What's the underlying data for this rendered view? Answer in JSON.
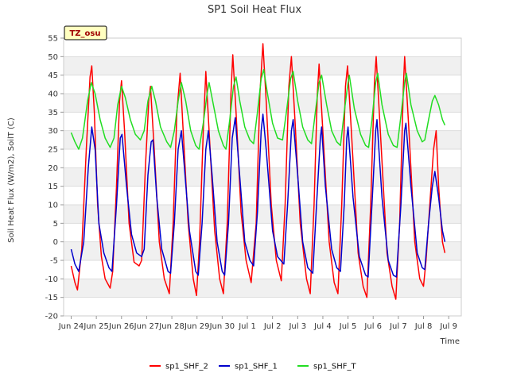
{
  "chart_data": {
    "type": "line",
    "title": "SP1 Soil Heat Flux",
    "xlabel": "Time",
    "ylabel": "Soil Heat Flux (W/m2), SoilT (C)",
    "badge": "TZ_osu",
    "ylim": [
      -20,
      55
    ],
    "xlim": [
      -0.3,
      15.5
    ],
    "y_ticks": [
      -20,
      -15,
      -10,
      -5,
      0,
      5,
      10,
      15,
      20,
      25,
      30,
      35,
      40,
      45,
      50,
      55
    ],
    "x_ticks": [
      {
        "pos": 0,
        "label": "Jun 24"
      },
      {
        "pos": 1,
        "label": "Jun 25"
      },
      {
        "pos": 2,
        "label": "Jun 26"
      },
      {
        "pos": 3,
        "label": "Jun 27"
      },
      {
        "pos": 4,
        "label": "Jun 28"
      },
      {
        "pos": 5,
        "label": "Jun 29"
      },
      {
        "pos": 6,
        "label": "Jun 30"
      },
      {
        "pos": 7,
        "label": "Jul 1"
      },
      {
        "pos": 8,
        "label": "Jul 2"
      },
      {
        "pos": 9,
        "label": "Jul 3"
      },
      {
        "pos": 10,
        "label": "Jul 4"
      },
      {
        "pos": 11,
        "label": "Jul 5"
      },
      {
        "pos": 12,
        "label": "Jul 6"
      },
      {
        "pos": 13,
        "label": "Jul 7"
      },
      {
        "pos": 14,
        "label": "Jul 8"
      },
      {
        "pos": 15,
        "label": "Jul 9"
      }
    ],
    "grid": "horizontal bands",
    "legend_position": "bottom",
    "series": [
      {
        "name": "sp1_SHF_2",
        "color": "#ff0000",
        "points": [
          [
            0.0,
            -6.5
          ],
          [
            0.15,
            -11.0
          ],
          [
            0.25,
            -13.0
          ],
          [
            0.42,
            -2.0
          ],
          [
            0.6,
            25.0
          ],
          [
            0.75,
            44.5
          ],
          [
            0.82,
            47.5
          ],
          [
            0.92,
            35.0
          ],
          [
            1.05,
            10.0
          ],
          [
            1.2,
            -4.0
          ],
          [
            1.35,
            -10.0
          ],
          [
            1.55,
            -12.5
          ],
          [
            1.65,
            -8.0
          ],
          [
            1.8,
            15.0
          ],
          [
            1.92,
            38.0
          ],
          [
            2.0,
            43.5
          ],
          [
            2.12,
            30.0
          ],
          [
            2.3,
            5.0
          ],
          [
            2.5,
            -5.5
          ],
          [
            2.7,
            -6.5
          ],
          [
            2.8,
            -5.0
          ],
          [
            2.95,
            20.0
          ],
          [
            3.08,
            38.0
          ],
          [
            3.15,
            42.0
          ],
          [
            3.3,
            25.0
          ],
          [
            3.5,
            0.0
          ],
          [
            3.7,
            -10.0
          ],
          [
            3.9,
            -14.0
          ],
          [
            4.05,
            5.0
          ],
          [
            4.2,
            35.0
          ],
          [
            4.33,
            45.5
          ],
          [
            4.45,
            30.0
          ],
          [
            4.65,
            5.0
          ],
          [
            4.85,
            -10.0
          ],
          [
            4.98,
            -14.5
          ],
          [
            5.1,
            0.0
          ],
          [
            5.25,
            30.0
          ],
          [
            5.35,
            46.0
          ],
          [
            5.48,
            30.0
          ],
          [
            5.7,
            3.0
          ],
          [
            5.9,
            -10.0
          ],
          [
            6.05,
            -14.0
          ],
          [
            6.2,
            5.0
          ],
          [
            6.35,
            40.0
          ],
          [
            6.42,
            50.5
          ],
          [
            6.55,
            35.0
          ],
          [
            6.75,
            8.0
          ],
          [
            6.95,
            -5.0
          ],
          [
            7.15,
            -11.0
          ],
          [
            7.35,
            5.0
          ],
          [
            7.5,
            40.0
          ],
          [
            7.62,
            53.5
          ],
          [
            7.75,
            38.0
          ],
          [
            7.95,
            10.0
          ],
          [
            8.15,
            -5.0
          ],
          [
            8.35,
            -10.5
          ],
          [
            8.5,
            10.0
          ],
          [
            8.65,
            42.0
          ],
          [
            8.75,
            50.0
          ],
          [
            8.9,
            32.0
          ],
          [
            9.1,
            5.0
          ],
          [
            9.35,
            -10.0
          ],
          [
            9.5,
            -14.0
          ],
          [
            9.65,
            10.0
          ],
          [
            9.78,
            40.0
          ],
          [
            9.85,
            48.0
          ],
          [
            10.0,
            30.0
          ],
          [
            10.25,
            0.0
          ],
          [
            10.45,
            -11.0
          ],
          [
            10.6,
            -14.0
          ],
          [
            10.75,
            10.0
          ],
          [
            10.9,
            42.0
          ],
          [
            10.98,
            47.5
          ],
          [
            11.15,
            28.0
          ],
          [
            11.4,
            -3.0
          ],
          [
            11.6,
            -12.0
          ],
          [
            11.75,
            -15.0
          ],
          [
            11.9,
            10.0
          ],
          [
            12.05,
            43.0
          ],
          [
            12.12,
            50.0
          ],
          [
            12.3,
            28.0
          ],
          [
            12.55,
            -3.0
          ],
          [
            12.75,
            -12.0
          ],
          [
            12.9,
            -15.5
          ],
          [
            13.05,
            5.0
          ],
          [
            13.2,
            42.0
          ],
          [
            13.25,
            50.0
          ],
          [
            13.42,
            30.0
          ],
          [
            13.65,
            0.0
          ],
          [
            13.85,
            -10.0
          ],
          [
            14.0,
            -12.0
          ],
          [
            14.1,
            -5.0
          ],
          [
            14.25,
            10.0
          ],
          [
            14.4,
            25.0
          ],
          [
            14.5,
            30.0
          ],
          [
            14.6,
            15.0
          ],
          [
            14.75,
            0.0
          ],
          [
            14.85,
            -3.0
          ]
        ]
      },
      {
        "name": "sp1_SHF_1",
        "color": "#0000cc",
        "points": [
          [
            0.0,
            -2.0
          ],
          [
            0.15,
            -6.0
          ],
          [
            0.3,
            -8.0
          ],
          [
            0.5,
            0.0
          ],
          [
            0.68,
            20.0
          ],
          [
            0.82,
            31.0
          ],
          [
            0.95,
            25.0
          ],
          [
            1.1,
            5.0
          ],
          [
            1.3,
            -3.0
          ],
          [
            1.5,
            -7.0
          ],
          [
            1.62,
            -8.0
          ],
          [
            1.8,
            10.0
          ],
          [
            1.95,
            28.0
          ],
          [
            2.02,
            29.0
          ],
          [
            2.2,
            15.0
          ],
          [
            2.4,
            2.0
          ],
          [
            2.6,
            -3.0
          ],
          [
            2.8,
            -4.0
          ],
          [
            2.9,
            -2.0
          ],
          [
            3.05,
            18.0
          ],
          [
            3.18,
            27.0
          ],
          [
            3.25,
            27.5
          ],
          [
            3.4,
            12.0
          ],
          [
            3.6,
            -2.0
          ],
          [
            3.85,
            -8.0
          ],
          [
            3.95,
            -8.5
          ],
          [
            4.1,
            5.0
          ],
          [
            4.25,
            25.0
          ],
          [
            4.38,
            30.0
          ],
          [
            4.5,
            20.0
          ],
          [
            4.7,
            3.0
          ],
          [
            4.95,
            -8.0
          ],
          [
            5.05,
            -9.0
          ],
          [
            5.2,
            5.0
          ],
          [
            5.35,
            25.0
          ],
          [
            5.45,
            30.0
          ],
          [
            5.6,
            18.0
          ],
          [
            5.8,
            0.0
          ],
          [
            6.0,
            -8.0
          ],
          [
            6.1,
            -9.0
          ],
          [
            6.25,
            5.0
          ],
          [
            6.4,
            28.0
          ],
          [
            6.52,
            33.5
          ],
          [
            6.65,
            22.0
          ],
          [
            6.9,
            0.0
          ],
          [
            7.1,
            -5.0
          ],
          [
            7.25,
            -6.5
          ],
          [
            7.4,
            8.0
          ],
          [
            7.55,
            30.0
          ],
          [
            7.62,
            34.5
          ],
          [
            7.75,
            25.0
          ],
          [
            8.0,
            3.0
          ],
          [
            8.2,
            -4.0
          ],
          [
            8.45,
            -6.0
          ],
          [
            8.6,
            10.0
          ],
          [
            8.75,
            30.0
          ],
          [
            8.82,
            33.0
          ],
          [
            9.0,
            18.0
          ],
          [
            9.2,
            0.0
          ],
          [
            9.4,
            -7.0
          ],
          [
            9.6,
            -8.5
          ],
          [
            9.75,
            10.0
          ],
          [
            9.9,
            28.0
          ],
          [
            9.95,
            31.0
          ],
          [
            10.1,
            15.0
          ],
          [
            10.35,
            -2.0
          ],
          [
            10.55,
            -7.0
          ],
          [
            10.7,
            -8.0
          ],
          [
            10.85,
            10.0
          ],
          [
            10.95,
            28.0
          ],
          [
            11.0,
            31.0
          ],
          [
            11.2,
            12.0
          ],
          [
            11.45,
            -4.0
          ],
          [
            11.7,
            -9.0
          ],
          [
            11.8,
            -9.5
          ],
          [
            11.95,
            10.0
          ],
          [
            12.1,
            30.0
          ],
          [
            12.15,
            33.0
          ],
          [
            12.35,
            12.0
          ],
          [
            12.6,
            -5.0
          ],
          [
            12.8,
            -9.0
          ],
          [
            12.92,
            -9.5
          ],
          [
            13.1,
            10.0
          ],
          [
            13.25,
            30.0
          ],
          [
            13.3,
            32.0
          ],
          [
            13.5,
            15.0
          ],
          [
            13.75,
            -3.0
          ],
          [
            13.95,
            -7.0
          ],
          [
            14.05,
            -7.5
          ],
          [
            14.2,
            5.0
          ],
          [
            14.35,
            15.0
          ],
          [
            14.45,
            19.0
          ],
          [
            14.6,
            12.0
          ],
          [
            14.75,
            3.0
          ],
          [
            14.85,
            0.0
          ]
        ]
      },
      {
        "name": "sp1_SHF_T",
        "color": "#22dd22",
        "points": [
          [
            0.0,
            29.5
          ],
          [
            0.15,
            27.0
          ],
          [
            0.3,
            25.0
          ],
          [
            0.45,
            28.0
          ],
          [
            0.65,
            38.0
          ],
          [
            0.8,
            43.0
          ],
          [
            0.95,
            40.0
          ],
          [
            1.15,
            33.0
          ],
          [
            1.35,
            28.0
          ],
          [
            1.55,
            25.5
          ],
          [
            1.7,
            28.0
          ],
          [
            1.85,
            37.0
          ],
          [
            2.0,
            42.0
          ],
          [
            2.15,
            39.0
          ],
          [
            2.35,
            33.0
          ],
          [
            2.55,
            29.0
          ],
          [
            2.75,
            27.5
          ],
          [
            2.9,
            30.0
          ],
          [
            3.05,
            38.0
          ],
          [
            3.2,
            42.0
          ],
          [
            3.35,
            38.0
          ],
          [
            3.55,
            31.0
          ],
          [
            3.8,
            27.0
          ],
          [
            3.95,
            25.5
          ],
          [
            4.1,
            30.0
          ],
          [
            4.25,
            38.0
          ],
          [
            4.38,
            43.0
          ],
          [
            4.55,
            38.0
          ],
          [
            4.75,
            30.0
          ],
          [
            4.95,
            26.0
          ],
          [
            5.08,
            25.0
          ],
          [
            5.25,
            32.0
          ],
          [
            5.4,
            40.0
          ],
          [
            5.48,
            43.0
          ],
          [
            5.65,
            37.0
          ],
          [
            5.85,
            30.0
          ],
          [
            6.05,
            26.0
          ],
          [
            6.15,
            25.0
          ],
          [
            6.3,
            33.0
          ],
          [
            6.45,
            42.0
          ],
          [
            6.55,
            44.5
          ],
          [
            6.7,
            38.0
          ],
          [
            6.9,
            31.0
          ],
          [
            7.1,
            27.5
          ],
          [
            7.25,
            26.5
          ],
          [
            7.4,
            35.0
          ],
          [
            7.55,
            44.0
          ],
          [
            7.65,
            46.5
          ],
          [
            7.8,
            40.0
          ],
          [
            8.0,
            32.0
          ],
          [
            8.2,
            28.0
          ],
          [
            8.4,
            27.5
          ],
          [
            8.55,
            35.0
          ],
          [
            8.72,
            44.0
          ],
          [
            8.82,
            46.0
          ],
          [
            9.0,
            38.0
          ],
          [
            9.2,
            31.0
          ],
          [
            9.4,
            27.5
          ],
          [
            9.55,
            26.5
          ],
          [
            9.7,
            35.0
          ],
          [
            9.85,
            43.0
          ],
          [
            9.95,
            45.0
          ],
          [
            10.15,
            37.0
          ],
          [
            10.35,
            30.0
          ],
          [
            10.55,
            27.0
          ],
          [
            10.7,
            26.0
          ],
          [
            10.85,
            35.0
          ],
          [
            11.0,
            43.0
          ],
          [
            11.05,
            45.0
          ],
          [
            11.25,
            36.0
          ],
          [
            11.5,
            29.0
          ],
          [
            11.7,
            26.0
          ],
          [
            11.82,
            25.5
          ],
          [
            11.95,
            33.0
          ],
          [
            12.1,
            43.0
          ],
          [
            12.18,
            45.5
          ],
          [
            12.35,
            37.0
          ],
          [
            12.6,
            29.0
          ],
          [
            12.8,
            26.0
          ],
          [
            12.95,
            25.5
          ],
          [
            13.1,
            34.0
          ],
          [
            13.25,
            43.0
          ],
          [
            13.32,
            45.5
          ],
          [
            13.5,
            37.0
          ],
          [
            13.75,
            30.0
          ],
          [
            13.95,
            27.0
          ],
          [
            14.05,
            27.5
          ],
          [
            14.2,
            33.0
          ],
          [
            14.35,
            38.0
          ],
          [
            14.45,
            39.5
          ],
          [
            14.6,
            37.0
          ],
          [
            14.75,
            33.0
          ],
          [
            14.85,
            31.5
          ]
        ]
      }
    ]
  }
}
